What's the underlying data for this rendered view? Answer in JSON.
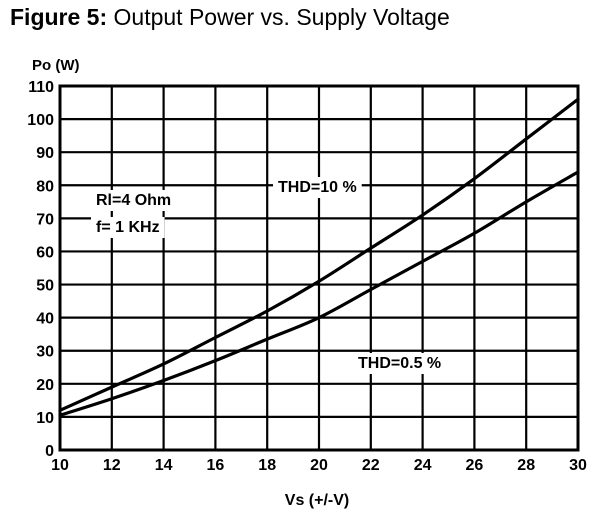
{
  "figure": {
    "number": "Figure 5:",
    "caption": "Output Power vs. Supply Voltage"
  },
  "chart_data": {
    "type": "line",
    "title": "Output Power vs. Supply Voltage",
    "xlabel": "Vs (+/-V)",
    "ylabel": "Po (W)",
    "xlim": [
      10,
      30
    ],
    "ylim": [
      0,
      110
    ],
    "xticks": [
      10,
      12,
      14,
      16,
      18,
      20,
      22,
      24,
      26,
      28,
      30
    ],
    "yticks": [
      0,
      10,
      20,
      30,
      40,
      50,
      60,
      70,
      80,
      90,
      100,
      110
    ],
    "grid": true,
    "legend": "none",
    "annotations": [
      {
        "text": "Rl=4 Ohm"
      },
      {
        "text": "f= 1 KHz"
      }
    ],
    "series": [
      {
        "name": "THD=10 %",
        "x": [
          10,
          12,
          14,
          16,
          18,
          20,
          22,
          24,
          26,
          28,
          30
        ],
        "values": [
          12,
          19,
          26,
          34,
          42,
          51,
          61,
          71,
          82,
          94,
          106
        ]
      },
      {
        "name": "THD=0.5 %",
        "x": [
          10,
          12,
          14,
          16,
          18,
          20,
          22,
          24,
          26,
          28,
          30
        ],
        "values": [
          10.5,
          15.5,
          21,
          27,
          33.5,
          40,
          48.5,
          57,
          65.5,
          75,
          84
        ]
      }
    ]
  }
}
